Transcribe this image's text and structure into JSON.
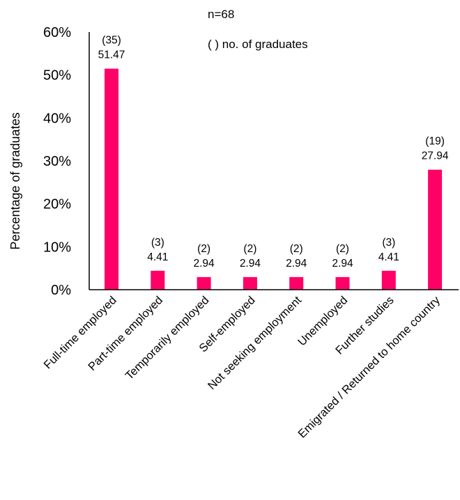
{
  "chart_data": {
    "type": "bar",
    "title": "",
    "xlabel": "",
    "ylabel": "Percentage of graduates",
    "ylim": [
      0,
      0.6
    ],
    "yticks": [
      "0%",
      "10%",
      "20%",
      "30%",
      "40%",
      "50%",
      "60%"
    ],
    "grid": false,
    "bar_color": "#ff0066",
    "annotations": [
      "n=68",
      "( ) no. of graduates"
    ],
    "categories": [
      "Full-time employed",
      "Part-time employed",
      "Temporarily employed",
      "Self-employed",
      "Not seeking employment",
      "Unemployed",
      "Further studies",
      "Emigrated / Returned to home country"
    ],
    "values": [
      0.5147,
      0.0441,
      0.0294,
      0.0294,
      0.0294,
      0.0294,
      0.0441,
      0.2794
    ],
    "counts": [
      "(35)",
      "(3)",
      "(2)",
      "(2)",
      "(2)",
      "(2)",
      "(3)",
      "(19)"
    ],
    "value_labels": [
      "51.47",
      "4.41",
      "2.94",
      "2.94",
      "2.94",
      "2.94",
      "4.41",
      "27.94"
    ]
  }
}
